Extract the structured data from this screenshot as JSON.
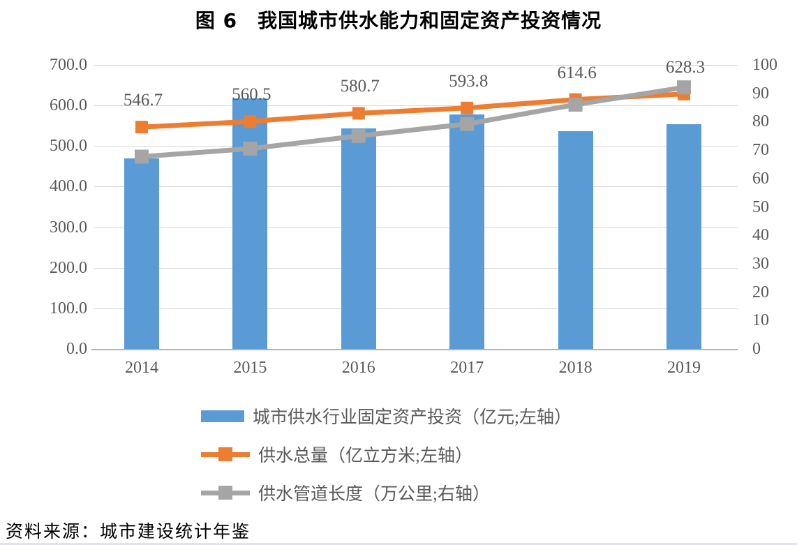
{
  "figure": {
    "title": "图 6　我国城市供水能力和固定资产投资情况",
    "source": "资料来源：城市建设统计年鉴"
  },
  "chart_data": {
    "type": "combo-bar-line",
    "title": "图 6　我国城市供水能力和固定资产投资情况",
    "categories": [
      "2014",
      "2015",
      "2016",
      "2017",
      "2018",
      "2019"
    ],
    "series": [
      {
        "name": "城市供水行业固定资产投资（亿元;左轴）",
        "type": "bar",
        "axis": "left",
        "color": "#5B9BD5",
        "values": [
          470,
          617,
          543,
          578,
          536,
          553
        ]
      },
      {
        "name": "供水总量（亿立方米;左轴）",
        "type": "line",
        "axis": "left",
        "color": "#ED7D31",
        "marker": "square",
        "values": [
          546.7,
          560.5,
          580.7,
          593.8,
          614.6,
          628.3
        ],
        "data_labels": [
          "546.7",
          "560.5",
          "580.7",
          "593.8",
          "614.6",
          "628.3"
        ]
      },
      {
        "name": "供水管道长度（万公里;右轴）",
        "type": "line",
        "axis": "right",
        "color": "#A5A5A5",
        "marker": "square",
        "values": [
          67.7,
          70.5,
          75.0,
          79.2,
          86.0,
          92.1
        ]
      }
    ],
    "left_axis": {
      "min": 0,
      "max": 700,
      "step": 100,
      "tick_labels": [
        "700.0",
        "600.0",
        "500.0",
        "400.0",
        "300.0",
        "200.0",
        "100.0",
        "0.0"
      ]
    },
    "right_axis": {
      "min": 0,
      "max": 100,
      "step": 10,
      "tick_labels": [
        "100",
        "90",
        "80",
        "70",
        "60",
        "50",
        "40",
        "30",
        "20",
        "10",
        "0"
      ]
    },
    "grid": true,
    "legend_position": "bottom-left"
  },
  "colors": {
    "bar": "#5B9BD5",
    "line_supply": "#ED7D31",
    "line_pipeline": "#A5A5A5",
    "gridline": "#d8d8d8",
    "tick_text": "#595959",
    "bottom_rule": "#dce6f2"
  }
}
